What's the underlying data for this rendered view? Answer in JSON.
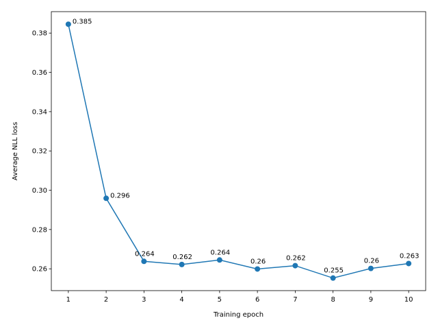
{
  "chart_data": {
    "type": "line",
    "xlabel": "Training epoch",
    "ylabel": "Average NLL loss",
    "x": [
      1,
      2,
      3,
      4,
      5,
      6,
      7,
      8,
      9,
      10
    ],
    "series": [
      {
        "values": [
          0.3845,
          0.2959,
          0.2638,
          0.2622,
          0.2645,
          0.2599,
          0.2616,
          0.2553,
          0.2602,
          0.2627
        ],
        "labels": [
          "0.385",
          "0.296",
          "0.264",
          "0.262",
          "0.264",
          "0.26",
          "0.262",
          "0.255",
          "0.26",
          "0.263"
        ],
        "color": "#1f77b4"
      }
    ],
    "xticks": [
      "1",
      "2",
      "3",
      "4",
      "5",
      "6",
      "7",
      "8",
      "9",
      "10"
    ],
    "yticks": [
      "0.26",
      "0.28",
      "0.30",
      "0.32",
      "0.34",
      "0.36",
      "0.38"
    ],
    "xlim": [
      0.55,
      10.45
    ],
    "ylim": [
      0.2489,
      0.3909
    ],
    "grid": false,
    "marker": "circle"
  }
}
